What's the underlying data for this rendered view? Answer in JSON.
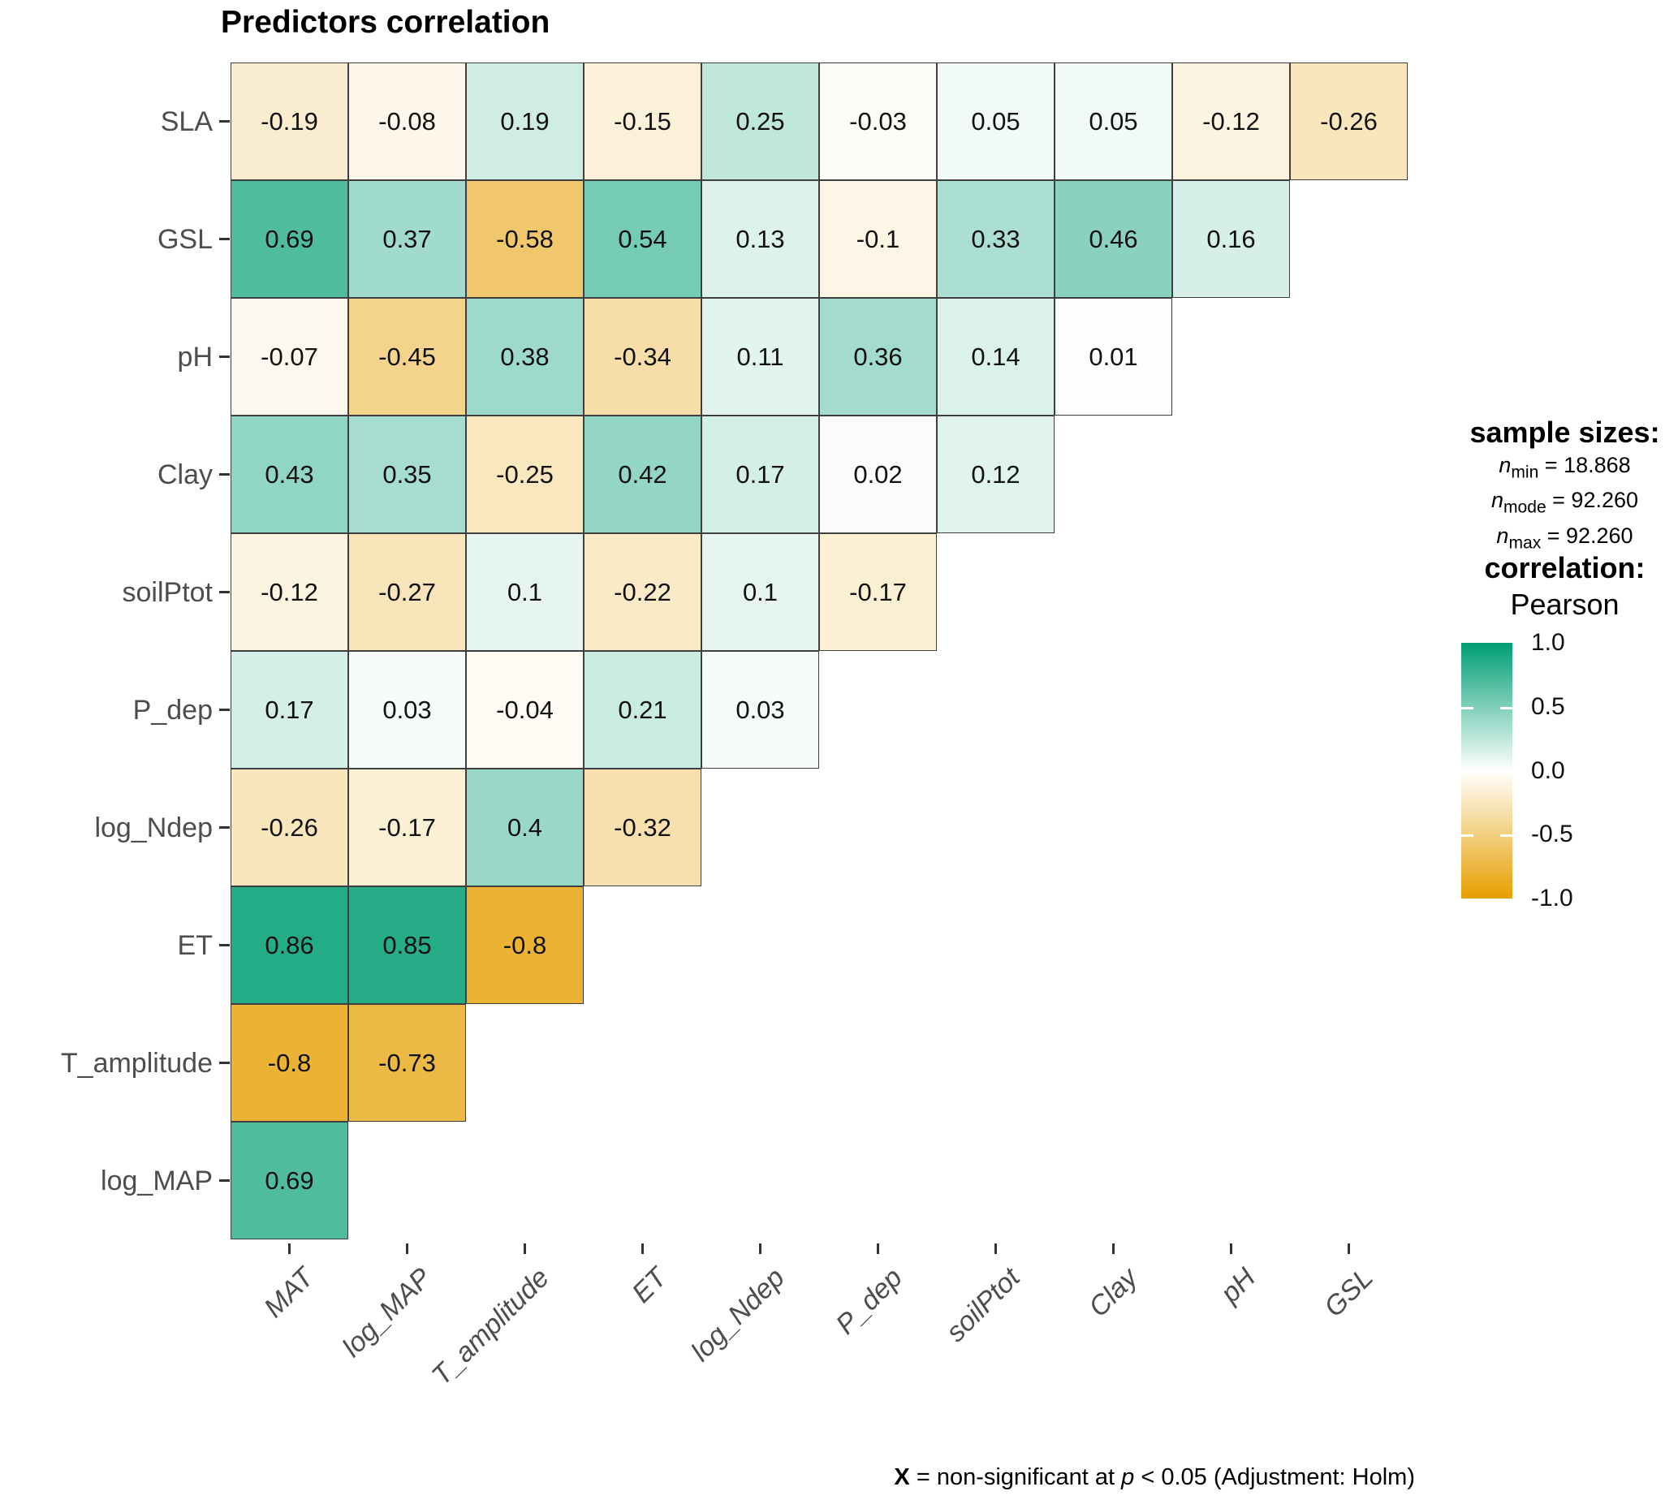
{
  "title": "Predictors correlation",
  "chart_data": {
    "type": "heatmap",
    "subtype": "lower-triangle-correlation-matrix",
    "x_labels": [
      "MAT",
      "log_MAP",
      "T_amplitude",
      "ET",
      "log_Ndep",
      "P_dep",
      "soilPtot",
      "Clay",
      "pH",
      "GSL"
    ],
    "y_labels": [
      "SLA",
      "GSL",
      "pH",
      "Clay",
      "soilPtot",
      "P_dep",
      "log_Ndep",
      "ET",
      "T_amplitude",
      "log_MAP"
    ],
    "rows": [
      {
        "label": "SLA",
        "values": [
          -0.19,
          -0.08,
          0.19,
          -0.15,
          0.25,
          -0.03,
          0.05,
          0.05,
          -0.12,
          -0.26
        ]
      },
      {
        "label": "GSL",
        "values": [
          0.69,
          0.37,
          -0.58,
          0.54,
          0.13,
          -0.1,
          0.33,
          0.46,
          0.16
        ]
      },
      {
        "label": "pH",
        "values": [
          -0.07,
          -0.45,
          0.38,
          -0.34,
          0.11,
          0.36,
          0.14,
          0.01
        ]
      },
      {
        "label": "Clay",
        "values": [
          0.43,
          0.35,
          -0.25,
          0.42,
          0.17,
          0.02,
          0.12
        ]
      },
      {
        "label": "soilPtot",
        "values": [
          -0.12,
          -0.27,
          0.1,
          -0.22,
          0.1,
          -0.17
        ]
      },
      {
        "label": "P_dep",
        "values": [
          0.17,
          0.03,
          -0.04,
          0.21,
          0.03
        ]
      },
      {
        "label": "log_Ndep",
        "values": [
          -0.26,
          -0.17,
          0.4,
          -0.32
        ]
      },
      {
        "label": "ET",
        "values": [
          0.86,
          0.85,
          -0.8
        ]
      },
      {
        "label": "T_amplitude",
        "values": [
          -0.8,
          -0.73
        ]
      },
      {
        "label": "log_MAP",
        "values": [
          0.69
        ]
      }
    ],
    "colorscale": {
      "low": "#E69F00",
      "mid": "#FFFFFF",
      "high": "#009E73",
      "domain": [
        -1,
        1
      ]
    },
    "legend_position": "right",
    "grid": "off"
  },
  "legend": {
    "sample_sizes_title": "sample sizes:",
    "sample_sizes": [
      {
        "symbol": "n",
        "sub": "min",
        "value": "18.868"
      },
      {
        "symbol": "n",
        "sub": "mode",
        "value": "92.260"
      },
      {
        "symbol": "n",
        "sub": "max",
        "value": "92.260"
      }
    ],
    "correlation_title": "correlation:",
    "method": "Pearson",
    "colorbar_ticks": [
      "1.0",
      "0.5",
      "0.0",
      "-0.5",
      "-1.0"
    ]
  },
  "caption": {
    "x": "X",
    "mid": " = non-significant at ",
    "p": "p",
    "rest": " < 0.05 (Adjustment: Holm)"
  }
}
